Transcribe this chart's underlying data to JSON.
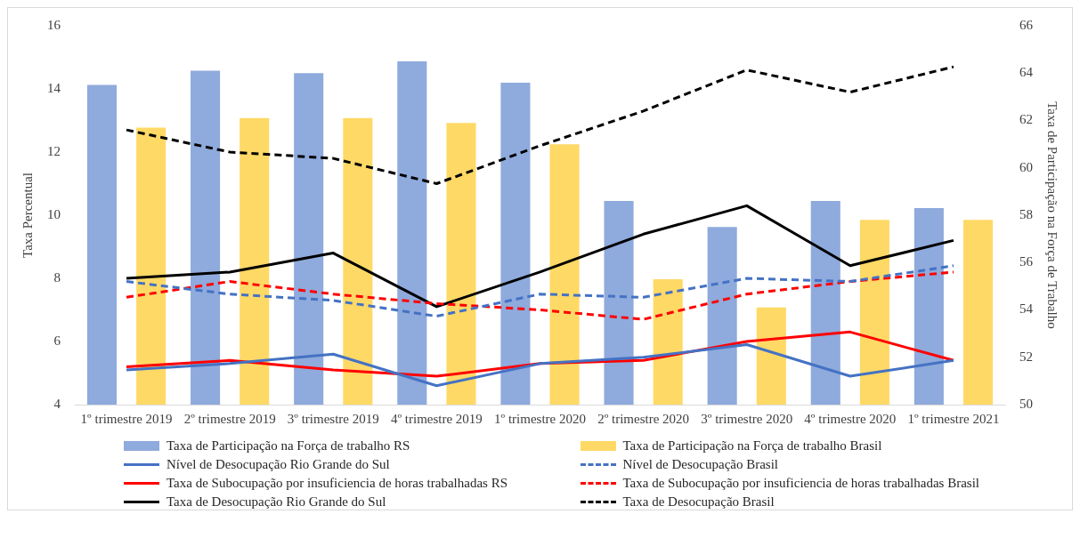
{
  "chart_data": {
    "type": "bar",
    "ylabel": "Taxa Percentual",
    "y2label": "Taxa de Participação na Força de Trabalho",
    "categories": [
      "1º trimestre 2019",
      "2º trimestre 2019",
      "3º trimestre 2019",
      "4º trimestre 2019",
      "1º trimestre 2020",
      "2º trimestre 2020",
      "3º trimestre 2020",
      "4º trimestre 2020",
      "1º trimestre 2021"
    ],
    "ylim": [
      4,
      16
    ],
    "yticks": [
      4,
      6,
      8,
      10,
      12,
      14,
      16
    ],
    "y2lim": [
      50,
      66
    ],
    "y2ticks": [
      50,
      52,
      54,
      56,
      58,
      60,
      62,
      64,
      66
    ],
    "grid": false,
    "legend": "bottom",
    "marker": "none",
    "series": [
      {
        "name": "Taxa de Participação na Força de trabalho RS",
        "axis": "y2",
        "color": "#8faadc",
        "values": [
          63.5,
          64.1,
          64.0,
          64.5,
          63.6,
          58.6,
          57.5,
          58.6,
          58.3
        ]
      },
      {
        "name": "Taxa de Participação na Força de trabalho Brasil",
        "axis": "y2",
        "color": "#ffd966",
        "values": [
          61.7,
          62.1,
          62.1,
          61.9,
          61.0,
          55.3,
          54.1,
          57.8,
          57.8
        ]
      },
      {
        "name": "Nível de Desocupação Rio Grande do Sul",
        "type": "line",
        "color": "#4472c4",
        "line_style": "solid",
        "values": [
          5.1,
          5.3,
          5.6,
          4.6,
          5.3,
          5.5,
          5.9,
          4.9,
          5.4
        ]
      },
      {
        "name": "Nível de Desocupação Brasil",
        "type": "line",
        "color": "#4472c4",
        "line_style": "dashed",
        "values": [
          7.9,
          7.5,
          7.3,
          6.8,
          7.5,
          7.4,
          8.0,
          7.9,
          8.4
        ]
      },
      {
        "name": "Taxa de Subocupação por insuficiencia de horas trabalhadas RS",
        "type": "line",
        "color": "#ff0000",
        "line_style": "solid",
        "values": [
          5.2,
          5.4,
          5.1,
          4.9,
          5.3,
          5.4,
          6.0,
          6.3,
          5.4
        ]
      },
      {
        "name": "Taxa de Subocupação por insuficiencia de horas trabalhadas Brasil",
        "type": "line",
        "color": "#ff0000",
        "line_style": "dashed",
        "values": [
          7.4,
          7.9,
          7.5,
          7.2,
          7.0,
          6.7,
          7.5,
          7.9,
          8.2
        ]
      },
      {
        "name": "Taxa de Desocupação Rio Grande do Sul",
        "type": "line",
        "color": "#000000",
        "line_style": "solid",
        "values": [
          8.0,
          8.2,
          8.8,
          7.1,
          8.2,
          9.4,
          10.3,
          8.4,
          9.2
        ]
      },
      {
        "name": "Taxa de Desocupação Brasil",
        "type": "line",
        "color": "#000000",
        "line_style": "dashed",
        "values": [
          12.7,
          12.0,
          11.8,
          11.0,
          12.2,
          13.3,
          14.6,
          13.9,
          14.7
        ]
      }
    ]
  }
}
